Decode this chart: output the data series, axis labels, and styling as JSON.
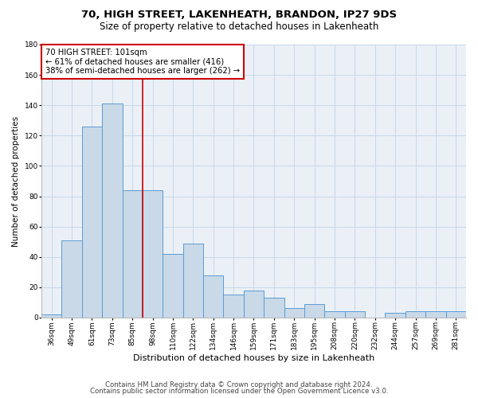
{
  "title1": "70, HIGH STREET, LAKENHEATH, BRANDON, IP27 9DS",
  "title2": "Size of property relative to detached houses in Lakenheath",
  "xlabel": "Distribution of detached houses by size in Lakenheath",
  "ylabel": "Number of detached properties",
  "categories": [
    "36sqm",
    "49sqm",
    "61sqm",
    "73sqm",
    "85sqm",
    "98sqm",
    "110sqm",
    "122sqm",
    "134sqm",
    "146sqm",
    "159sqm",
    "171sqm",
    "183sqm",
    "195sqm",
    "208sqm",
    "220sqm",
    "232sqm",
    "244sqm",
    "257sqm",
    "269sqm",
    "281sqm"
  ],
  "values": [
    2,
    51,
    126,
    141,
    84,
    84,
    42,
    49,
    28,
    15,
    18,
    13,
    6,
    9,
    4,
    4,
    0,
    3,
    4,
    4,
    4
  ],
  "bar_color": "#c9d9e8",
  "bar_edge_color": "#5b9bd5",
  "ylim": [
    0,
    180
  ],
  "yticks": [
    0,
    20,
    40,
    60,
    80,
    100,
    120,
    140,
    160,
    180
  ],
  "vline_x_index": 4.5,
  "annotation_text": "70 HIGH STREET: 101sqm\n← 61% of detached houses are smaller (416)\n38% of semi-detached houses are larger (262) →",
  "annotation_box_color": "#ffffff",
  "annotation_box_edge": "#cc0000",
  "vline_color": "#cc0000",
  "footer1": "Contains HM Land Registry data © Crown copyright and database right 2024.",
  "footer2": "Contains public sector information licensed under the Open Government Licence v3.0.",
  "bg_color": "#ffffff",
  "grid_color": "#c8d8e8",
  "title1_fontsize": 9.5,
  "title2_fontsize": 8.5,
  "xlabel_fontsize": 8,
  "ylabel_fontsize": 7.5,
  "tick_fontsize": 6.5,
  "annotation_fontsize": 7.2,
  "footer_fontsize": 6.2
}
